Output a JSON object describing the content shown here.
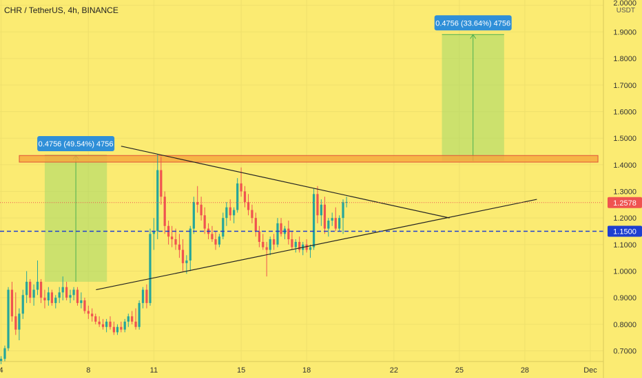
{
  "chart_data": {
    "type": "candlestick",
    "title": "CHR / TetherUS, 4h, BINANCE",
    "quote_unit": "USDT",
    "y_ticks": [
      "0.7000",
      "0.8000",
      "0.9000",
      "1.0000",
      "1.1000",
      "1.2000",
      "1.3000",
      "1.4000",
      "1.5000",
      "1.6000",
      "1.7000",
      "1.8000",
      "1.9000",
      "2.0000"
    ],
    "x_ticks": [
      {
        "label": "4",
        "day": 4
      },
      {
        "label": "8",
        "day": 8
      },
      {
        "label": "11",
        "day": 11
      },
      {
        "label": "15",
        "day": 15
      },
      {
        "label": "18",
        "day": 18
      },
      {
        "label": "22",
        "day": 22
      },
      {
        "label": "25",
        "day": 25
      },
      {
        "label": "28",
        "day": 28
      },
      {
        "label": "Dec",
        "day": 31
      }
    ],
    "ylim": [
      0.66,
      2.02
    ],
    "xlim": [
      3.95,
      31.6
    ],
    "current_price": {
      "label": "1.2578",
      "value": 1.2578
    },
    "support_line": {
      "label": "1.1500",
      "value": 1.15
    },
    "resistance_zone": {
      "low": 1.41,
      "high": 1.435,
      "x_start": 3.95,
      "x_end": 31.35
    },
    "measure_boxes": [
      {
        "label": "0.4756 (49.54%) 4756",
        "x_start": 6.0,
        "x_end": 8.85,
        "y_low": 0.96,
        "y_high": 1.4356
      },
      {
        "label": "0.4756 (33.64%) 4756",
        "x_start": 24.2,
        "x_end": 27.05,
        "y_low": 1.4144,
        "y_high": 1.89
      }
    ],
    "trend_lines": [
      {
        "name": "upper",
        "x1": 9.5,
        "y1": 1.47,
        "x2": 24.55,
        "y2": 1.2
      },
      {
        "name": "lower",
        "x1": 8.35,
        "y1": 0.93,
        "x2": 28.55,
        "y2": 1.27
      }
    ],
    "candles": [
      [
        4.0,
        0.66,
        0.68,
        0.65,
        0.67
      ],
      [
        4.17,
        0.67,
        0.72,
        0.66,
        0.71
      ],
      [
        4.33,
        0.71,
        0.94,
        0.7,
        0.93
      ],
      [
        4.5,
        0.93,
        0.96,
        0.81,
        0.83
      ],
      [
        4.67,
        0.83,
        0.92,
        0.76,
        0.78
      ],
      [
        4.83,
        0.78,
        0.86,
        0.74,
        0.84
      ],
      [
        5.0,
        0.84,
        0.93,
        0.82,
        0.91
      ],
      [
        5.17,
        0.91,
        1.0,
        0.88,
        0.96
      ],
      [
        5.33,
        0.96,
        0.97,
        0.88,
        0.9
      ],
      [
        5.5,
        0.9,
        0.95,
        0.87,
        0.93
      ],
      [
        5.67,
        0.93,
        1.04,
        0.91,
        0.96
      ],
      [
        5.83,
        0.96,
        0.97,
        0.88,
        0.9
      ],
      [
        6.0,
        0.9,
        0.93,
        0.86,
        0.89
      ],
      [
        6.17,
        0.89,
        0.94,
        0.87,
        0.92
      ],
      [
        6.33,
        0.92,
        0.93,
        0.87,
        0.88
      ],
      [
        6.5,
        0.88,
        0.91,
        0.86,
        0.9
      ],
      [
        6.67,
        0.9,
        0.94,
        0.88,
        0.92
      ],
      [
        6.83,
        0.92,
        0.98,
        0.89,
        0.94
      ],
      [
        7.0,
        0.94,
        0.96,
        0.89,
        0.9
      ],
      [
        7.17,
        0.9,
        0.93,
        0.88,
        0.91
      ],
      [
        7.33,
        0.91,
        0.94,
        0.89,
        0.93
      ],
      [
        7.5,
        0.93,
        0.94,
        0.87,
        0.88
      ],
      [
        7.67,
        0.88,
        0.92,
        0.86,
        0.89
      ],
      [
        7.83,
        0.89,
        0.9,
        0.84,
        0.85
      ],
      [
        8.0,
        0.85,
        0.87,
        0.82,
        0.84
      ],
      [
        8.17,
        0.84,
        0.86,
        0.81,
        0.83
      ],
      [
        8.33,
        0.83,
        0.84,
        0.8,
        0.81
      ],
      [
        8.5,
        0.81,
        0.83,
        0.79,
        0.8
      ],
      [
        8.67,
        0.8,
        0.82,
        0.78,
        0.79
      ],
      [
        8.83,
        0.79,
        0.82,
        0.77,
        0.81
      ],
      [
        9.0,
        0.81,
        0.83,
        0.78,
        0.79
      ],
      [
        9.17,
        0.79,
        0.81,
        0.76,
        0.77
      ],
      [
        9.33,
        0.77,
        0.8,
        0.76,
        0.79
      ],
      [
        9.5,
        0.79,
        0.81,
        0.77,
        0.78
      ],
      [
        9.67,
        0.78,
        0.82,
        0.77,
        0.81
      ],
      [
        9.83,
        0.81,
        0.84,
        0.79,
        0.83
      ],
      [
        10.0,
        0.83,
        0.85,
        0.8,
        0.81
      ],
      [
        10.17,
        0.81,
        0.86,
        0.78,
        0.79
      ],
      [
        10.33,
        0.79,
        0.89,
        0.78,
        0.88
      ],
      [
        10.5,
        0.88,
        0.94,
        0.86,
        0.93
      ],
      [
        10.67,
        0.93,
        0.95,
        0.86,
        0.88
      ],
      [
        10.83,
        0.88,
        1.16,
        0.87,
        1.14
      ],
      [
        11.0,
        1.14,
        1.2,
        1.08,
        1.15
      ],
      [
        11.17,
        1.15,
        1.44,
        1.12,
        1.38
      ],
      [
        11.33,
        1.38,
        1.43,
        1.25,
        1.28
      ],
      [
        11.5,
        1.28,
        1.3,
        1.14,
        1.17
      ],
      [
        11.67,
        1.17,
        1.19,
        1.1,
        1.13
      ],
      [
        11.83,
        1.13,
        1.17,
        1.09,
        1.12
      ],
      [
        12.0,
        1.12,
        1.16,
        1.08,
        1.1
      ],
      [
        12.17,
        1.1,
        1.14,
        1.05,
        1.08
      ],
      [
        12.33,
        1.08,
        1.12,
        1.0,
        1.03
      ],
      [
        12.5,
        1.03,
        1.06,
        0.99,
        1.04
      ],
      [
        12.67,
        1.04,
        1.17,
        1.0,
        1.16
      ],
      [
        12.83,
        1.16,
        1.28,
        1.14,
        1.26
      ],
      [
        13.0,
        1.26,
        1.32,
        1.22,
        1.25
      ],
      [
        13.17,
        1.25,
        1.28,
        1.19,
        1.21
      ],
      [
        13.33,
        1.21,
        1.24,
        1.14,
        1.16
      ],
      [
        13.5,
        1.16,
        1.18,
        1.12,
        1.14
      ],
      [
        13.67,
        1.14,
        1.17,
        1.11,
        1.12
      ],
      [
        13.83,
        1.12,
        1.15,
        1.08,
        1.1
      ],
      [
        14.0,
        1.1,
        1.14,
        1.09,
        1.13
      ],
      [
        14.17,
        1.13,
        1.22,
        1.12,
        1.2
      ],
      [
        14.33,
        1.2,
        1.26,
        1.17,
        1.24
      ],
      [
        14.5,
        1.24,
        1.27,
        1.19,
        1.21
      ],
      [
        14.67,
        1.21,
        1.24,
        1.18,
        1.23
      ],
      [
        14.83,
        1.23,
        1.35,
        1.22,
        1.33
      ],
      [
        15.0,
        1.33,
        1.39,
        1.28,
        1.3
      ],
      [
        15.17,
        1.3,
        1.32,
        1.24,
        1.26
      ],
      [
        15.33,
        1.26,
        1.29,
        1.21,
        1.23
      ],
      [
        15.5,
        1.23,
        1.25,
        1.18,
        1.2
      ],
      [
        15.67,
        1.2,
        1.22,
        1.13,
        1.15
      ],
      [
        15.83,
        1.15,
        1.17,
        1.09,
        1.11
      ],
      [
        16.0,
        1.11,
        1.14,
        1.08,
        1.09
      ],
      [
        16.17,
        1.09,
        1.11,
        0.98,
        1.08
      ],
      [
        16.33,
        1.08,
        1.13,
        1.06,
        1.12
      ],
      [
        16.5,
        1.12,
        1.14,
        1.08,
        1.1
      ],
      [
        16.67,
        1.1,
        1.2,
        1.09,
        1.18
      ],
      [
        16.83,
        1.18,
        1.2,
        1.13,
        1.14
      ],
      [
        17.0,
        1.14,
        1.17,
        1.12,
        1.16
      ],
      [
        17.17,
        1.16,
        1.19,
        1.1,
        1.12
      ],
      [
        17.33,
        1.12,
        1.15,
        1.08,
        1.09
      ],
      [
        17.5,
        1.09,
        1.12,
        1.07,
        1.11
      ],
      [
        17.67,
        1.11,
        1.13,
        1.07,
        1.08
      ],
      [
        17.83,
        1.08,
        1.11,
        1.06,
        1.1
      ],
      [
        18.0,
        1.1,
        1.12,
        1.07,
        1.08
      ],
      [
        18.17,
        1.08,
        1.1,
        1.05,
        1.09
      ],
      [
        18.33,
        1.09,
        1.31,
        1.08,
        1.29
      ],
      [
        18.5,
        1.29,
        1.32,
        1.18,
        1.21
      ],
      [
        18.67,
        1.21,
        1.27,
        1.17,
        1.25
      ],
      [
        18.83,
        1.25,
        1.28,
        1.14,
        1.16
      ],
      [
        19.0,
        1.16,
        1.2,
        1.13,
        1.19
      ],
      [
        19.17,
        1.19,
        1.22,
        1.17,
        1.2
      ],
      [
        19.33,
        1.2,
        1.24,
        1.15,
        1.16
      ],
      [
        19.5,
        1.16,
        1.21,
        1.15,
        1.2
      ],
      [
        19.67,
        1.2,
        1.27,
        1.14,
        1.26
      ],
      [
        19.83,
        1.26,
        1.28,
        1.24,
        1.26
      ]
    ]
  }
}
